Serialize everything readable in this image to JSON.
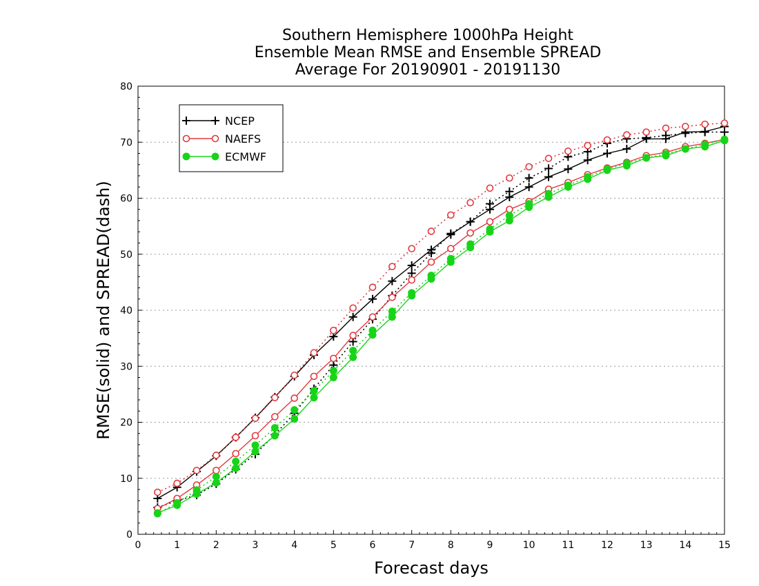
{
  "chart_data": {
    "type": "line",
    "title_lines": [
      "Southern Hemisphere 1000hPa Height",
      "Ensemble Mean RMSE and Ensemble SPREAD",
      "Average For 20190901 - 20191130"
    ],
    "xlabel": "Forecast days",
    "ylabel": "RMSE(solid) and SPREAD(dash)",
    "xlim": [
      0,
      15
    ],
    "ylim": [
      0,
      80
    ],
    "xticks": [
      "0",
      "1",
      "2",
      "3",
      "4",
      "5",
      "6",
      "7",
      "8",
      "9",
      "10",
      "11",
      "12",
      "13",
      "14",
      "15"
    ],
    "yticks": [
      "0",
      "10",
      "20",
      "30",
      "40",
      "50",
      "60",
      "70",
      "80"
    ],
    "grid": true,
    "legend_position": "top-left",
    "x": [
      0.5,
      1,
      1.5,
      2,
      2.5,
      3,
      3.5,
      4,
      4.5,
      5,
      5.5,
      6,
      6.5,
      7,
      7.5,
      8,
      8.5,
      9,
      9.5,
      10,
      10.5,
      11,
      11.5,
      12,
      12.5,
      13,
      13.5,
      14,
      14.5,
      15
    ],
    "series": [
      {
        "name": "NCEP",
        "color": "#000000",
        "marker": "plus",
        "rmse": [
          6.4,
          8.4,
          11.2,
          14.0,
          17.3,
          20.8,
          24.5,
          28.2,
          32.0,
          35.3,
          38.8,
          42.0,
          45.2,
          48.0,
          50.8,
          53.5,
          55.8,
          58.0,
          60.2,
          62.0,
          63.8,
          65.2,
          66.8,
          68.0,
          68.8,
          70.6,
          70.6,
          71.8,
          71.9,
          72.8
        ],
        "spread": [
          4.8,
          6.0,
          7.0,
          9.0,
          11.6,
          14.3,
          17.8,
          21.6,
          26.0,
          30.2,
          34.4,
          38.4,
          42.6,
          46.6,
          50.2,
          53.7,
          55.8,
          59.0,
          61.2,
          63.6,
          65.3,
          67.4,
          68.3,
          69.8,
          70.6,
          70.8,
          71.2,
          71.6,
          71.8,
          71.8
        ]
      },
      {
        "name": "NAEFS",
        "color": "#e0393e",
        "marker": "circle-open",
        "rmse": [
          4.6,
          6.4,
          8.8,
          11.4,
          14.4,
          17.6,
          21.0,
          24.3,
          28.2,
          31.4,
          35.5,
          38.8,
          42.3,
          45.4,
          48.6,
          51.0,
          53.8,
          55.8,
          58.0,
          59.4,
          61.6,
          62.8,
          64.2,
          65.4,
          66.4,
          67.6,
          68.2,
          69.2,
          69.8,
          70.5
        ],
        "spread": [
          7.5,
          9.1,
          11.4,
          14.1,
          17.3,
          20.7,
          24.4,
          28.4,
          32.4,
          36.4,
          40.4,
          44.1,
          47.8,
          51.0,
          54.1,
          57.0,
          59.2,
          61.8,
          63.6,
          65.6,
          67.1,
          68.4,
          69.4,
          70.4,
          71.3,
          71.8,
          72.5,
          72.8,
          73.2,
          73.4
        ]
      },
      {
        "name": "ECMWF",
        "color": "#18d418",
        "marker": "circle-filled",
        "rmse": [
          3.8,
          5.2,
          7.2,
          9.2,
          11.8,
          14.8,
          17.6,
          20.6,
          24.4,
          28.0,
          31.6,
          35.6,
          38.8,
          42.6,
          45.6,
          48.6,
          51.2,
          54.0,
          56.0,
          58.4,
          60.2,
          62.0,
          63.4,
          65.0,
          65.8,
          67.2,
          67.6,
          68.8,
          69.2,
          70.3
        ],
        "spread": [
          3.7,
          5.6,
          7.9,
          10.3,
          13.0,
          15.9,
          19.0,
          22.2,
          25.6,
          29.2,
          32.8,
          36.4,
          39.8,
          43.1,
          46.2,
          49.2,
          51.8,
          54.5,
          56.9,
          59.0,
          60.8,
          62.3,
          63.8,
          65.2,
          66.2,
          67.2,
          67.9,
          68.8,
          69.6,
          70.5
        ]
      }
    ]
  }
}
